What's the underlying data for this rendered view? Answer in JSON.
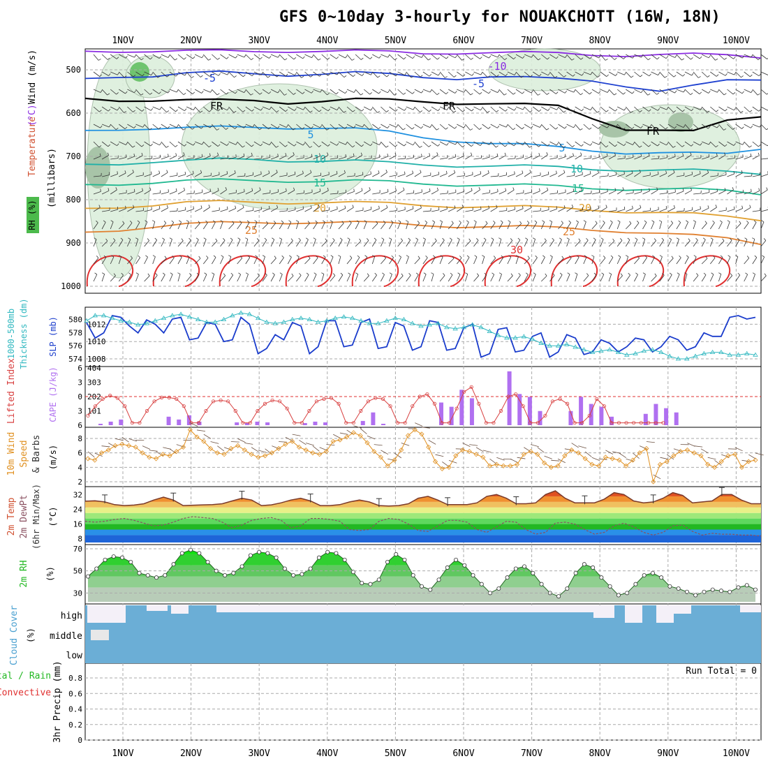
{
  "title": "GFS 0~10day 3-hourly for NOUAKCHOTT (16W, 18N)",
  "colors": {
    "temp_iso": {
      "-10": "#8a2be2",
      "-5": "#1e40d0",
      "0": "#000000",
      "5": "#1e90e0",
      "10": "#20b0a8",
      "15": "#20b890",
      "20": "#e0a030",
      "25": "#e08030",
      "30": "#e03030"
    },
    "wind_line": "#e09020",
    "slp": "#1a3ccc",
    "thickness": "#30b8c0",
    "lifted": "#d84040",
    "cape_bar": "#b070f0",
    "cloud": "#6baed6",
    "rh_green": "#22b822"
  },
  "chart_data": [
    {
      "panel": "upper-air",
      "type": "line",
      "ylabel_parts": [
        "RH (%)",
        "Temperature (°C)",
        "Wind (m/s)"
      ],
      "unit_label": "(millibars)",
      "y_ticks": [
        500,
        600,
        700,
        800,
        900,
        1000
      ],
      "isotherm_labels": [
        "-10",
        "-5",
        "FR",
        "5",
        "10",
        "15",
        "20",
        "25",
        "30"
      ],
      "isotherms": [
        {
          "t": "-10",
          "p": [
            457,
            455,
            456,
            458,
            458,
            457,
            455,
            456,
            458,
            460,
            461,
            459,
            460,
            462,
            463,
            464,
            465,
            465,
            466,
            467,
            469
          ]
        },
        {
          "t": "-5",
          "p": [
            520,
            513,
            514,
            510,
            507,
            508,
            510,
            509,
            508,
            512,
            516,
            518,
            516,
            520,
            522,
            523,
            535,
            550,
            540,
            525,
            520
          ]
        },
        {
          "t": "0",
          "p": [
            566,
            568,
            570,
            572,
            572,
            570,
            574,
            572,
            570,
            571,
            572,
            575,
            578,
            582,
            585,
            610,
            635,
            640,
            645,
            618,
            605
          ]
        },
        {
          "t": "5",
          "p": [
            640,
            635,
            635,
            636,
            634,
            632,
            632,
            634,
            638,
            645,
            655,
            662,
            670,
            675,
            680,
            685,
            690,
            692,
            695,
            695,
            680
          ]
        },
        {
          "t": "10",
          "p": [
            718,
            715,
            712,
            712,
            708,
            706,
            708,
            710,
            712,
            716,
            718,
            720,
            722,
            724,
            726,
            728,
            730,
            732,
            734,
            736,
            738
          ]
        },
        {
          "t": "15",
          "p": [
            765,
            762,
            760,
            758,
            756,
            755,
            755,
            757,
            758,
            760,
            762,
            764,
            766,
            768,
            770,
            772,
            774,
            776,
            778,
            780,
            785
          ]
        },
        {
          "t": "20",
          "p": [
            820,
            815,
            812,
            808,
            806,
            805,
            805,
            806,
            808,
            810,
            812,
            814,
            816,
            818,
            820,
            822,
            826,
            830,
            835,
            840,
            845
          ]
        },
        {
          "t": "25",
          "p": [
            875,
            868,
            862,
            858,
            855,
            852,
            851,
            852,
            854,
            856,
            858,
            860,
            862,
            864,
            866,
            868,
            872,
            878,
            885,
            890,
            900
          ]
        }
      ],
      "days": [
        "1NOV",
        "2NOV",
        "3NOV",
        "4NOV",
        "5NOV",
        "6NOV",
        "7NOV",
        "8NOV",
        "9NOV",
        "10NOV"
      ]
    },
    {
      "panel": "slp-thickness",
      "type": "line",
      "ylabel_left": "1000-500mb Thickness (dm)",
      "ylabel_right": "SLP (mb)",
      "thickness_ticks": [
        574,
        576,
        578,
        580
      ],
      "slp_ticks": [
        1008,
        1010,
        1012
      ],
      "slp_values": [
        1012.2,
        1010.4,
        1011.0,
        1013.0,
        1012.8,
        1011.8,
        1011.0,
        1012.5,
        1012.0,
        1011.0,
        1012.6,
        1012.8,
        1010.2,
        1010.4,
        1012.2,
        1012.0,
        1010.0,
        1010.2,
        1012.8,
        1012.0,
        1008.6,
        1009.2,
        1010.8,
        1010.2,
        1012.2,
        1011.8,
        1008.6,
        1009.4,
        1012.4,
        1012.4,
        1009.4,
        1009.6,
        1012.2,
        1012.6,
        1009.2,
        1009.4,
        1012.2,
        1011.8,
        1009.0,
        1009.4,
        1012.4,
        1012.2,
        1009.0,
        1009.2,
        1011.6,
        1012.0,
        1008.2,
        1008.6,
        1011.4,
        1011.6,
        1008.8,
        1009.0,
        1010.6,
        1011.0,
        1008.2,
        1008.8,
        1010.8,
        1010.4,
        1008.5,
        1008.8,
        1010.2,
        1009.8,
        1008.8,
        1009.4,
        1010.4,
        1010.2,
        1008.8,
        1009.4,
        1010.6,
        1010.2,
        1009.0,
        1009.4,
        1011.0,
        1010.6,
        1010.6,
        1012.8,
        1013.0,
        1012.6,
        1012.8
      ],
      "thickness_values": [
        579.8,
        580.6,
        580.6,
        580.2,
        579.8,
        579.6,
        579.2,
        579.4,
        579.8,
        580.2,
        580.6,
        580.8,
        580.4,
        580.0,
        579.6,
        579.6,
        580.0,
        580.6,
        581.0,
        580.8,
        580.2,
        579.6,
        579.4,
        579.6,
        580.0,
        580.2,
        580.0,
        579.6,
        579.8,
        580.2,
        580.4,
        580.2,
        579.8,
        579.4,
        579.4,
        579.8,
        580.2,
        580.0,
        579.4,
        579.0,
        579.2,
        579.4,
        578.8,
        578.6,
        578.8,
        579.2,
        578.8,
        578.2,
        577.6,
        577.2,
        577.2,
        577.4,
        577.0,
        576.4,
        576.0,
        576.0,
        576.2,
        575.8,
        575.4,
        575.0,
        575.2,
        575.4,
        575.0,
        574.6,
        574.8,
        575.2,
        575.4,
        575.0,
        574.4,
        574.0,
        574.0,
        574.4,
        574.8,
        575.0,
        575.0,
        574.6,
        574.6,
        574.8,
        574.6
      ]
    },
    {
      "panel": "lifted-cape",
      "type": "bar",
      "ylabel_left": "Lifted Index",
      "ylabel_right": "CAPE (J/kg)",
      "lifted_ticks": [
        -6,
        -3,
        0,
        3,
        6
      ],
      "cape_ticks": [
        101,
        202,
        303,
        404
      ],
      "lifted_index": [
        4,
        2,
        0.5,
        -0.2,
        0.3,
        2,
        5.5,
        5.5,
        3,
        1,
        0.2,
        0.2,
        0.5,
        2,
        5.5,
        5.5,
        3,
        1,
        0.8,
        1,
        3,
        5.5,
        5.5,
        3,
        1.5,
        0.8,
        1,
        2.5,
        5.5,
        5.5,
        3,
        1,
        0.5,
        0.3,
        1.5,
        5.5,
        5.5,
        3,
        1,
        0.3,
        0.5,
        2,
        5.5,
        5.5,
        2,
        0,
        -0.5,
        1.5,
        5.5,
        5.5,
        2.5,
        -1,
        -2,
        1.5,
        5.5,
        5.5,
        3,
        0,
        -0.5,
        2,
        5.5,
        5.5,
        4,
        1,
        0.5,
        1.5,
        5.5,
        5.5,
        4,
        0.5,
        2,
        5.5,
        5.5,
        5.5,
        5.5,
        5.5,
        5.5,
        5.5,
        5.5
      ],
      "cape_bars": [
        [
          1.0,
          10
        ],
        [
          1.15,
          25
        ],
        [
          1.3,
          40
        ],
        [
          2.0,
          60
        ],
        [
          2.15,
          40
        ],
        [
          2.3,
          70
        ],
        [
          2.45,
          25
        ],
        [
          3.0,
          20
        ],
        [
          3.15,
          15
        ],
        [
          3.3,
          25
        ],
        [
          3.45,
          20
        ],
        [
          4.0,
          15
        ],
        [
          4.15,
          25
        ],
        [
          4.3,
          20
        ],
        [
          4.85,
          30
        ],
        [
          5.0,
          90
        ],
        [
          5.15,
          10
        ],
        [
          6.0,
          160
        ],
        [
          6.15,
          130
        ],
        [
          6.3,
          250
        ],
        [
          6.45,
          190
        ],
        [
          7.0,
          380
        ],
        [
          7.15,
          220
        ],
        [
          7.3,
          200
        ],
        [
          7.45,
          100
        ],
        [
          7.9,
          100
        ],
        [
          8.05,
          200
        ],
        [
          8.2,
          150
        ],
        [
          8.35,
          130
        ],
        [
          8.5,
          60
        ],
        [
          9.0,
          80
        ],
        [
          9.15,
          150
        ],
        [
          9.3,
          120
        ],
        [
          9.45,
          90
        ]
      ]
    },
    {
      "panel": "10m-wind",
      "type": "line",
      "ylabel": "10m Wind Speed & Barbs (m/s)",
      "y_ticks": [
        2,
        4,
        6,
        8
      ],
      "values": [
        5.2,
        5.0,
        6.0,
        6.4,
        7.0,
        7.2,
        7.0,
        6.8,
        6.0,
        5.4,
        5.2,
        5.8,
        5.6,
        6.2,
        6.8,
        9.2,
        8.2,
        7.6,
        6.6,
        6.0,
        5.8,
        6.6,
        7.0,
        6.4,
        5.8,
        5.4,
        5.6,
        6.0,
        6.6,
        7.2,
        7.6,
        6.8,
        6.4,
        6.0,
        5.8,
        6.2,
        7.6,
        7.8,
        8.2,
        8.8,
        8.4,
        7.4,
        6.2,
        5.4,
        4.2,
        5.0,
        6.4,
        8.4,
        9.2,
        8.6,
        6.8,
        4.8,
        3.8,
        4.0,
        5.6,
        6.4,
        6.2,
        5.8,
        5.4,
        4.2,
        4.4,
        4.2,
        4.2,
        4.4,
        5.8,
        6.2,
        5.8,
        4.6,
        4.0,
        4.2,
        5.6,
        6.4,
        6.0,
        5.2,
        4.4,
        4.2,
        5.4,
        5.2,
        5.0,
        4.2,
        5.0,
        6.0,
        6.6,
        2.0,
        4.4,
        4.8,
        5.6,
        6.2,
        6.4,
        6.0,
        5.6,
        4.4,
        4.0,
        4.8,
        5.6,
        5.8,
        4.0,
        4.8,
        5.0
      ]
    },
    {
      "panel": "2m-temp",
      "type": "area",
      "ylabel": "2m Temp 2m DewPt (6hr Min/Max) (°C)",
      "y_ticks": [
        8,
        16,
        24,
        32
      ],
      "temp": [
        28.4,
        28.6,
        28.0,
        26.5,
        26.0,
        26.3,
        27.0,
        29.0,
        30.6,
        29.0,
        26.0,
        26.2,
        26.4,
        26.5,
        27.0,
        28.5,
        30.0,
        29.0,
        26.0,
        26.4,
        27.5,
        29.0,
        30.0,
        28.5,
        26.0,
        26.0,
        26.5,
        28.0,
        29.0,
        28.0,
        26.0,
        25.8,
        26.0,
        27.0,
        30.0,
        31.0,
        29.0,
        26.5,
        26.5,
        26.5,
        27.5,
        31.0,
        32.0,
        30.0,
        27.0,
        27.0,
        27.5,
        32.0,
        34.0,
        30.0,
        27.5,
        27.5,
        27.5,
        29.5,
        33.0,
        32.0,
        28.5,
        27.5,
        28.0,
        30.0,
        33.0,
        31.5,
        27.5,
        28.0,
        28.5,
        32.0,
        32.0,
        29.0,
        27.0,
        27.0
      ],
      "dewpt": [
        17.5,
        17.0,
        17.5,
        18.5,
        19.0,
        18.0,
        16.5,
        15.0,
        15.5,
        17.0,
        19.0,
        20.0,
        19.5,
        19.0,
        17.0,
        14.0,
        15.5,
        18.0,
        19.0,
        19.5,
        18.0,
        14.0,
        15.0,
        19.0,
        19.0,
        18.5,
        17.5,
        13.0,
        12.5,
        13.0,
        17.5,
        19.0,
        18.5,
        16.0,
        12.5,
        12.0,
        15.0,
        18.0,
        18.0,
        17.0,
        13.0,
        11.5,
        14.5,
        17.5,
        17.0,
        13.0,
        10.5,
        11.5,
        16.5,
        17.0,
        16.0,
        13.0,
        10.5,
        11.5,
        15.0,
        16.5,
        14.5,
        11.5,
        10.0,
        11.5,
        15.0,
        15.5,
        12.0,
        10.0,
        11.0,
        10.5,
        10.5,
        10.0,
        10.0,
        9.5
      ]
    },
    {
      "panel": "2m-rh",
      "type": "area",
      "ylabel": "2m RH (%)",
      "y_ticks": [
        30,
        50,
        70
      ],
      "values": [
        45,
        52,
        60,
        63,
        62,
        58,
        48,
        46,
        44,
        46,
        56,
        66,
        69,
        66,
        58,
        50,
        46,
        48,
        54,
        64,
        67,
        66,
        62,
        52,
        46,
        47,
        52,
        62,
        67,
        66,
        60,
        49,
        39,
        38,
        42,
        58,
        65,
        60,
        46,
        36,
        33,
        42,
        53,
        60,
        55,
        46,
        38,
        30,
        34,
        44,
        52,
        54,
        48,
        38,
        30,
        27,
        34,
        48,
        56,
        53,
        44,
        36,
        28,
        30,
        38,
        46,
        48,
        44,
        36,
        34,
        31,
        28,
        31,
        33,
        32,
        31,
        35,
        37,
        33
      ],
      "rh_points": []
    },
    {
      "panel": "cloud-cover",
      "type": "area",
      "ylabel": "Cloud Cover (%)",
      "levels": [
        "high",
        "middle",
        "low"
      ]
    },
    {
      "panel": "precip",
      "type": "bar",
      "ylabel_left": "Total / Rain Convective",
      "ylabel": "3hr Precip (mm)",
      "y_ticks": [
        0,
        0.2,
        0.4,
        0.6,
        0.8
      ],
      "run_total": "Run Total = 0",
      "values": []
    }
  ],
  "labels": {
    "rh_box": "RH (%)",
    "temp_word": "Temperature",
    "temp_unit": "(°C)",
    "wind_word": "Wind (m/s)",
    "mb": "(millibars)",
    "thick1": "1000-500mb",
    "thick2": "Thickness (dm)",
    "slp": "SLP (mb)",
    "lifted": "Lifted Index",
    "cape": "CAPE (J/kg)",
    "w10a": "10m Wind",
    "w10b": "Speed",
    "w10c": "& Barbs",
    "w10d": "(m/s)",
    "t2a": "2m Temp",
    "t2b": "2m DewPt",
    "t2c": "(6hr Min/Max)",
    "t2d": "(°C)",
    "rh2": "2m RH",
    "pct": "(%)",
    "cloud": "Cloud Cover",
    "high": "high",
    "middle": "middle",
    "low": "low",
    "tot": "tal / Rain",
    "conv": "Convective",
    "precip": "3hr Precip (mm)"
  }
}
